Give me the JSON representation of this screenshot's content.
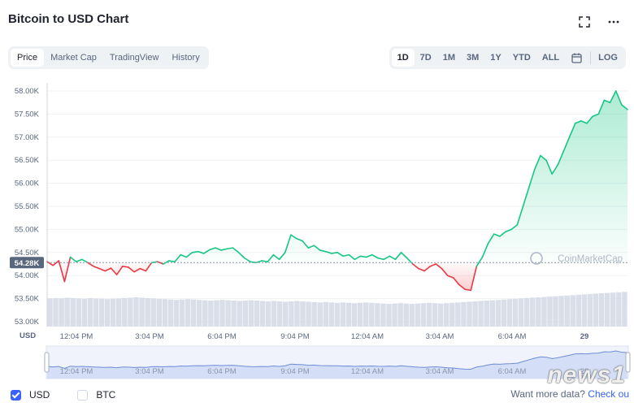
{
  "header": {
    "title": "Bitcoin to USD Chart",
    "expand_icon": "expand-icon",
    "more_icon": "more-icon"
  },
  "tabs": [
    {
      "label": "Price",
      "active": true
    },
    {
      "label": "Market Cap",
      "active": false
    },
    {
      "label": "TradingView",
      "active": false
    },
    {
      "label": "History",
      "active": false
    }
  ],
  "ranges": [
    {
      "label": "1D",
      "active": true
    },
    {
      "label": "7D",
      "active": false
    },
    {
      "label": "1M",
      "active": false
    },
    {
      "label": "3M",
      "active": false
    },
    {
      "label": "1Y",
      "active": false
    },
    {
      "label": "YTD",
      "active": false
    },
    {
      "label": "ALL",
      "active": false
    }
  ],
  "log_label": "LOG",
  "calendar_icon": "calendar-icon",
  "chart_data": {
    "type": "area",
    "y_ticks": [
      "58.00K",
      "57.50K",
      "57.00K",
      "56.50K",
      "56.00K",
      "55.50K",
      "55.00K",
      "54.50K",
      "54.00K",
      "53.50K",
      "53.00K"
    ],
    "ylim": [
      53000,
      58000
    ],
    "y_unit": "USD",
    "x_ticks": [
      "12:04 PM",
      "3:04 PM",
      "6:04 PM",
      "9:04 PM",
      "12:04 AM",
      "3:04 AM",
      "6:04 AM",
      "29"
    ],
    "reference_price": 54280,
    "reference_label": "54.28K",
    "watermark": "CoinMarketCap",
    "colors": {
      "up": "#16c784",
      "down": "#ea3943",
      "volume": "#cfd6e4",
      "reference": "#8b95a5"
    },
    "series": [
      {
        "values": [
          54300,
          54220,
          54320,
          53870,
          54400,
          54300,
          54350,
          54280,
          54200,
          54150,
          54100,
          54160,
          54020,
          54200,
          54180,
          54080,
          54150,
          54100,
          54280,
          54300,
          54250,
          54320,
          54300,
          54450,
          54400,
          54500,
          54520,
          54480,
          54560,
          54600,
          54550,
          54580,
          54600,
          54500,
          54380,
          54300,
          54280,
          54320,
          54300,
          54450,
          54350,
          54500,
          54880,
          54800,
          54750,
          54600,
          54650,
          54550,
          54520,
          54480,
          54500,
          54420,
          54450,
          54350,
          54420,
          54400,
          54450,
          54380,
          54350,
          54420,
          54350,
          54500,
          54380,
          54250,
          54150,
          54100,
          54200,
          54250,
          54150,
          54000,
          53950,
          53800,
          53700,
          53680,
          54200,
          54400,
          54700,
          54900,
          54850,
          54950,
          55000,
          55100,
          55500,
          55900,
          56300,
          56600,
          56500,
          56200,
          56400,
          56700,
          57000,
          57300,
          57350,
          57300,
          57450,
          57500,
          57800,
          57750,
          58000,
          57700,
          57600
        ]
      }
    ],
    "volume": [
      0.77,
      0.78,
      0.77,
      0.79,
      0.78,
      0.77,
      0.76,
      0.78,
      0.77,
      0.76,
      0.75,
      0.76,
      0.77,
      0.78,
      0.79,
      0.8,
      0.79,
      0.78,
      0.77,
      0.76,
      0.75,
      0.74,
      0.73,
      0.74,
      0.75,
      0.74,
      0.73,
      0.72,
      0.71,
      0.72,
      0.73,
      0.72,
      0.71,
      0.7,
      0.71,
      0.72,
      0.71,
      0.7,
      0.69,
      0.7,
      0.69,
      0.68,
      0.69,
      0.7,
      0.69,
      0.68,
      0.67,
      0.66,
      0.67,
      0.66,
      0.65,
      0.66,
      0.65,
      0.64,
      0.65,
      0.66,
      0.65,
      0.64,
      0.63,
      0.62,
      0.63,
      0.64,
      0.63,
      0.62,
      0.63,
      0.64,
      0.65,
      0.64,
      0.63,
      0.64,
      0.65,
      0.66,
      0.67,
      0.68,
      0.69,
      0.7,
      0.71,
      0.72,
      0.73,
      0.74,
      0.75,
      0.76,
      0.77,
      0.78,
      0.79,
      0.8,
      0.81,
      0.82,
      0.83,
      0.84,
      0.85,
      0.86,
      0.87,
      0.88,
      0.89,
      0.9,
      0.91,
      0.92,
      0.93,
      0.94,
      0.95
    ]
  },
  "legend": {
    "usd_label": "USD",
    "usd_checked": true,
    "btc_label": "BTC",
    "btc_checked": false
  },
  "footer": {
    "more_text": "Want more data?",
    "link_text": "Check ou"
  },
  "watermark_logo": "news1"
}
